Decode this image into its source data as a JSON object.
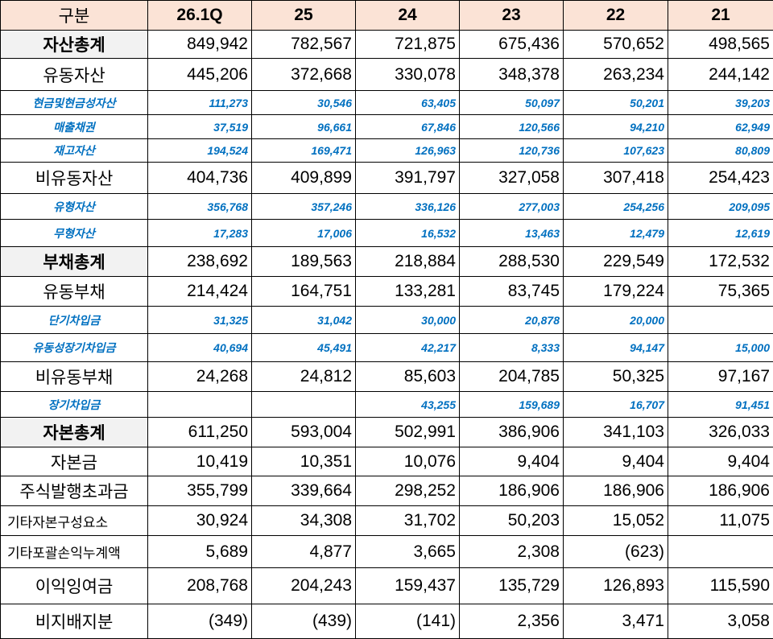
{
  "table": {
    "header": [
      "구분",
      "26.1Q",
      "25",
      "24",
      "23",
      "22",
      "21"
    ],
    "rows": [
      {
        "label": "자산총계",
        "values": [
          "849,942",
          "782,567",
          "721,875",
          "675,436",
          "570,652",
          "498,565"
        ]
      },
      {
        "label": "유동자산",
        "values": [
          "445,206",
          "372,668",
          "330,078",
          "348,378",
          "263,234",
          "244,142"
        ]
      },
      {
        "label": "현금및현금성자산",
        "values": [
          "111,273",
          "30,546",
          "63,405",
          "50,097",
          "50,201",
          "39,203"
        ]
      },
      {
        "label": "매출채권",
        "values": [
          "37,519",
          "96,661",
          "67,846",
          "120,566",
          "94,210",
          "62,949"
        ]
      },
      {
        "label": "재고자산",
        "values": [
          "194,524",
          "169,471",
          "126,963",
          "120,736",
          "107,623",
          "80,809"
        ]
      },
      {
        "label": "비유동자산",
        "values": [
          "404,736",
          "409,899",
          "391,797",
          "327,058",
          "307,418",
          "254,423"
        ]
      },
      {
        "label": "유형자산",
        "values": [
          "356,768",
          "357,246",
          "336,126",
          "277,003",
          "254,256",
          "209,095"
        ]
      },
      {
        "label": "무형자산",
        "values": [
          "17,283",
          "17,006",
          "16,532",
          "13,463",
          "12,479",
          "12,619"
        ]
      },
      {
        "label": "부채총계",
        "values": [
          "238,692",
          "189,563",
          "218,884",
          "288,530",
          "229,549",
          "172,532"
        ]
      },
      {
        "label": "유동부채",
        "values": [
          "214,424",
          "164,751",
          "133,281",
          "83,745",
          "179,224",
          "75,365"
        ]
      },
      {
        "label": "단기차입금",
        "values": [
          "31,325",
          "31,042",
          "30,000",
          "20,878",
          "20,000",
          null
        ]
      },
      {
        "label": "유동성장기차입금",
        "values": [
          "40,694",
          "45,491",
          "42,217",
          "8,333",
          "94,147",
          "15,000"
        ]
      },
      {
        "label": "비유동부채",
        "values": [
          "24,268",
          "24,812",
          "85,603",
          "204,785",
          "50,325",
          "97,167"
        ]
      },
      {
        "label": "장기차입금",
        "values": [
          null,
          null,
          "43,255",
          "159,689",
          "16,707",
          "91,451"
        ]
      },
      {
        "label": "자본총계",
        "values": [
          "611,250",
          "593,004",
          "502,991",
          "386,906",
          "341,103",
          "326,033"
        ]
      },
      {
        "label": "자본금",
        "values": [
          "10,419",
          "10,351",
          "10,076",
          "9,404",
          "9,404",
          "9,404"
        ]
      },
      {
        "label": "주식발행초과금",
        "values": [
          "355,799",
          "339,664",
          "298,252",
          "186,906",
          "186,906",
          "186,906"
        ]
      },
      {
        "label": "기타자본구성요소",
        "values": [
          "30,924",
          "34,308",
          "31,702",
          "50,203",
          "15,052",
          "11,075"
        ]
      },
      {
        "label": "기타포괄손익누계액",
        "values": [
          "5,689",
          "4,877",
          "3,665",
          "2,308",
          "(623)",
          null
        ]
      },
      {
        "label": "이익잉여금",
        "values": [
          "208,768",
          "204,243",
          "159,437",
          "135,729",
          "126,893",
          "115,590"
        ]
      },
      {
        "label": "비지배지분",
        "values": [
          "(349)",
          "(439)",
          "(141)",
          "2,356",
          "3,471",
          "3,058"
        ]
      }
    ]
  }
}
